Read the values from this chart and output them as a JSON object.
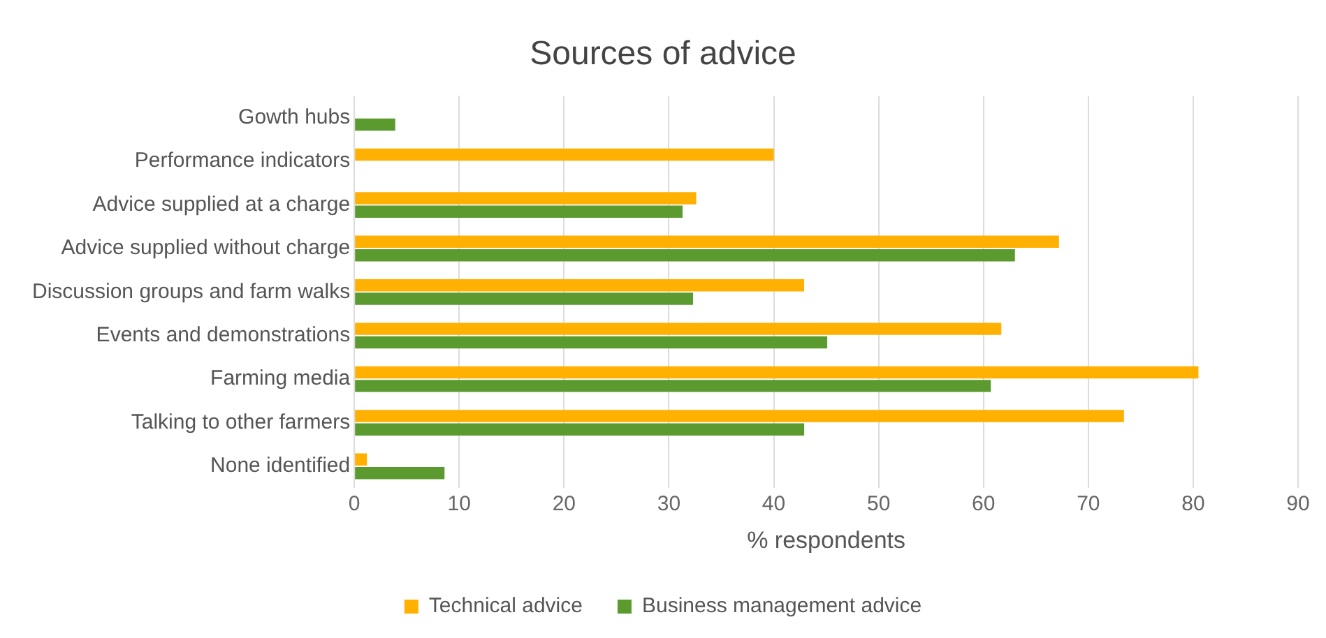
{
  "chart_data": {
    "type": "bar",
    "orientation": "horizontal",
    "title": "Sources of advice",
    "xlabel": "% respondents",
    "categories": [
      "Gowth hubs",
      "Performance indicators",
      "Advice supplied at a charge",
      "Advice supplied without charge",
      "Discussion groups and farm walks",
      "Events and demonstrations",
      "Farming media",
      "Talking to other farmers",
      "None identified"
    ],
    "series": [
      {
        "name": "Technical advice",
        "color": "#ffb000",
        "values": [
          null,
          40,
          32.6,
          67.2,
          42.9,
          61.7,
          80.5,
          73.4,
          1.2
        ]
      },
      {
        "name": "Business management advice",
        "color": "#5b9a2f",
        "values": [
          3.9,
          null,
          31.3,
          63.0,
          32.3,
          45.1,
          60.7,
          42.9,
          8.6
        ]
      }
    ],
    "xlim": [
      0,
      90
    ],
    "xticks": [
      0,
      10,
      20,
      30,
      40,
      50,
      60,
      70,
      80,
      90
    ],
    "grid": "x",
    "legend": "bottom"
  }
}
